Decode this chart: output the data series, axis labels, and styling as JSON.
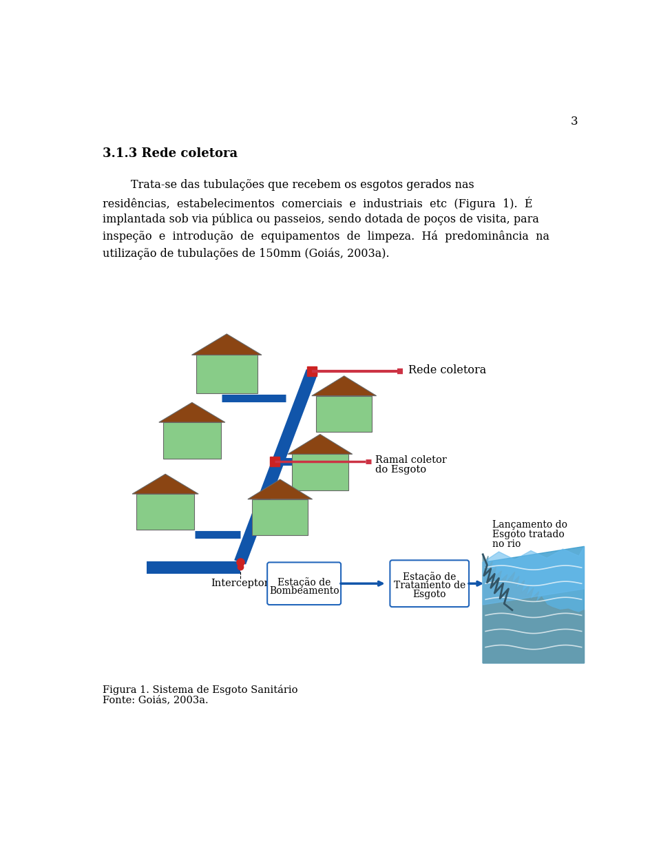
{
  "page_number": "3",
  "section_title": "3.1.3 Rede coletora",
  "text_lines": [
    "        Trata-se das tubulações que recebem os esgotos gerados nas",
    "residências,  estabelecimentos  comerciais  e  industriais  etc  (Figura  1).  É",
    "implantada sob via pública ou passeios, sendo dotada de poços de visita, para",
    "inspeção  e  introdução  de  equipamentos  de  limpeza.  Há  predominância  na",
    "utilização de tubulações de 150mm (Goiás, 2003a)."
  ],
  "label_rede": "Rede coletora",
  "label_ramal_line1": "Ramal coletor",
  "label_ramal_line2": "do Esgoto",
  "label_interceptor": "Interceptor",
  "label_estacao_bomb_line1": "Estação de",
  "label_estacao_bomb_line2": "Bombeamento",
  "label_estacao_trat_line1": "Estação de",
  "label_estacao_trat_line2": "Tratamento de",
  "label_estacao_trat_line3": "Esgoto",
  "label_lancamento_line1": "Lançamento do",
  "label_lancamento_line2": "Esgoto tratado",
  "label_lancamento_line3": "no rio",
  "fig_caption": "Figura 1. Sistema de Esgoto Sanitário",
  "fig_source": "Fonte: Goiás, 2003a.",
  "bg_color": "#ffffff",
  "text_color": "#000000",
  "blue_pipe": "#1155aa",
  "red_node": "#cc2222",
  "red_pipe": "#cc3344",
  "house_wall": "#88cc88",
  "house_roof": "#8b4513",
  "house_outline": "#666666",
  "box_border": "#2266bb",
  "river_blue1": "#3399cc",
  "river_blue2": "#55aadd"
}
